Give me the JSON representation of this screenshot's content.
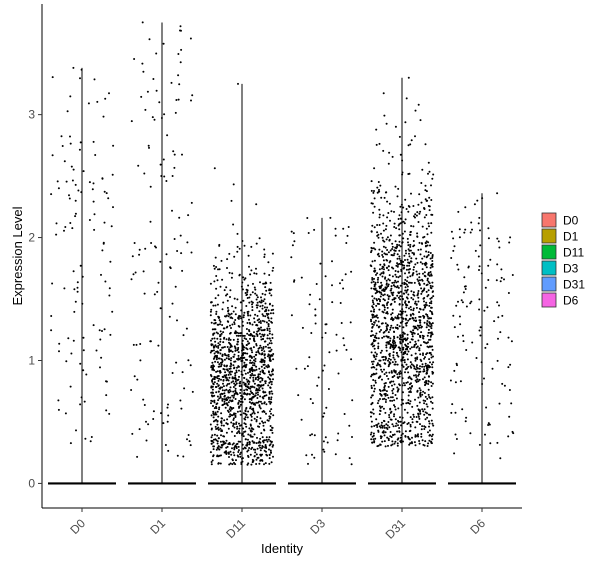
{
  "chart_data": {
    "type": "violin",
    "style": "jittered points with violin outline",
    "xlabel": "Identity",
    "ylabel": "Expression Level",
    "ylim": [
      -0.2,
      3.9
    ],
    "yticks": [
      0,
      1,
      2,
      3
    ],
    "categories": [
      "D0",
      "D1",
      "D11",
      "D3",
      "D31",
      "D6"
    ],
    "series": [
      {
        "name": "D0",
        "color": "#F8766D",
        "max": 3.38,
        "points_nonzero": 120,
        "nonzero_min": 0.3,
        "nonzero_max": 3.38,
        "zero_fraction": "majority"
      },
      {
        "name": "D1",
        "color": "#B79F00",
        "max": 3.75,
        "points_nonzero": 130,
        "nonzero_min": 0.2,
        "nonzero_max": 3.75,
        "zero_fraction": "majority"
      },
      {
        "name": "D11",
        "color": "#00BA38",
        "max": 3.25,
        "points_nonzero": 1400,
        "nonzero_min": 0.15,
        "nonzero_max": 3.25,
        "zero_fraction": "minority"
      },
      {
        "name": "D3",
        "color": "#00BFC4",
        "max": 2.16,
        "points_nonzero": 90,
        "nonzero_min": 0.15,
        "nonzero_max": 2.16,
        "zero_fraction": "majority"
      },
      {
        "name": "D31",
        "color": "#619CFF",
        "max": 3.3,
        "points_nonzero": 1500,
        "nonzero_min": 0.3,
        "nonzero_max": 3.3,
        "zero_fraction": "minority"
      },
      {
        "name": "D6",
        "color": "#F564E3",
        "max": 2.36,
        "points_nonzero": 130,
        "nonzero_min": 0.15,
        "nonzero_max": 2.36,
        "zero_fraction": "majority"
      }
    ],
    "legend": {
      "position": "right",
      "entries": [
        "D0",
        "D1",
        "D11",
        "D3",
        "D31",
        "D6"
      ]
    },
    "grid": false
  }
}
